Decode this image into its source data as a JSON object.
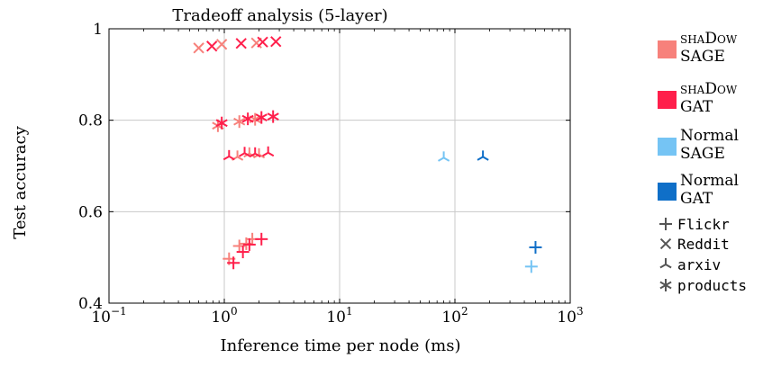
{
  "chart_data": {
    "type": "scatter",
    "title": "Tradeoff analysis (5-layer)",
    "xlabel": "Inference time per node (ms)",
    "ylabel": "Test accuracy",
    "xscale": "log",
    "xlim": [
      0.1,
      1000
    ],
    "ylim": [
      0.4,
      1.0
    ],
    "grid": true,
    "legend_position": "right",
    "x_ticks": [
      {
        "base": "10",
        "exp": "−1",
        "value": 0.1
      },
      {
        "base": "10",
        "exp": "0",
        "value": 1
      },
      {
        "base": "10",
        "exp": "1",
        "value": 10
      },
      {
        "base": "10",
        "exp": "2",
        "value": 100
      },
      {
        "base": "10",
        "exp": "3",
        "value": 1000
      }
    ],
    "y_ticks": [
      {
        "label": "0.4",
        "value": 0.4
      },
      {
        "label": "0.6",
        "value": 0.6
      },
      {
        "label": "0.8",
        "value": 0.8
      },
      {
        "label": "1",
        "value": 1.0
      }
    ],
    "model_legend": [
      {
        "line1": "shaDow",
        "line2": "SAGE",
        "color": "#f7817b",
        "smallcaps": true
      },
      {
        "line1": "shaDow",
        "line2": "GAT",
        "color": "#ff1f4b",
        "smallcaps": true
      },
      {
        "line1": "Normal",
        "line2": "SAGE",
        "color": "#75c4f4",
        "smallcaps": false
      },
      {
        "line1": "Normal",
        "line2": "GAT",
        "color": "#0f6fc8",
        "smallcaps": false
      }
    ],
    "dataset_legend": [
      {
        "label": "Flickr",
        "marker": "plus"
      },
      {
        "label": "Reddit",
        "marker": "x"
      },
      {
        "label": "arxiv",
        "marker": "tri"
      },
      {
        "label": "products",
        "marker": "star"
      }
    ],
    "colors": {
      "shadow_sage": "#f7817b",
      "shadow_gat": "#ff1f4b",
      "normal_sage": "#75c4f4",
      "normal_gat": "#0f6fc8",
      "legend_marker": "#555555",
      "grid": "#c8c8c8"
    },
    "series": [
      {
        "model": "shaDow SAGE",
        "dataset": "Flickr",
        "color": "#f7817b",
        "marker": "plus",
        "points": [
          [
            1.1,
            0.497
          ],
          [
            1.35,
            0.525
          ],
          [
            1.55,
            0.53
          ],
          [
            1.75,
            0.54
          ]
        ]
      },
      {
        "model": "shaDow GAT",
        "dataset": "Flickr",
        "color": "#ff1f4b",
        "marker": "plus",
        "points": [
          [
            1.2,
            0.488
          ],
          [
            1.45,
            0.512
          ],
          [
            1.65,
            0.528
          ],
          [
            2.1,
            0.54
          ]
        ]
      },
      {
        "model": "shaDow SAGE",
        "dataset": "Reddit",
        "color": "#f7817b",
        "marker": "x",
        "points": [
          [
            0.6,
            0.958
          ],
          [
            0.95,
            0.966
          ],
          [
            1.9,
            0.969
          ]
        ]
      },
      {
        "model": "shaDow GAT",
        "dataset": "Reddit",
        "color": "#ff1f4b",
        "marker": "x",
        "points": [
          [
            0.78,
            0.962
          ],
          [
            1.4,
            0.968
          ],
          [
            2.15,
            0.971
          ],
          [
            2.8,
            0.972
          ]
        ]
      },
      {
        "model": "shaDow SAGE",
        "dataset": "arxiv",
        "color": "#f7817b",
        "marker": "tri",
        "points": [
          [
            1.3,
            0.72
          ],
          [
            1.65,
            0.727
          ],
          [
            2.0,
            0.725
          ]
        ]
      },
      {
        "model": "shaDow GAT",
        "dataset": "arxiv",
        "color": "#ff1f4b",
        "marker": "tri",
        "points": [
          [
            1.1,
            0.721
          ],
          [
            1.5,
            0.728
          ],
          [
            1.85,
            0.727
          ],
          [
            2.4,
            0.729
          ]
        ]
      },
      {
        "model": "shaDow SAGE",
        "dataset": "products",
        "color": "#f7817b",
        "marker": "star",
        "points": [
          [
            0.88,
            0.788
          ],
          [
            1.35,
            0.797
          ],
          [
            1.85,
            0.802
          ]
        ]
      },
      {
        "model": "shaDow GAT",
        "dataset": "products",
        "color": "#ff1f4b",
        "marker": "star",
        "points": [
          [
            0.95,
            0.794
          ],
          [
            1.6,
            0.803
          ],
          [
            2.1,
            0.806
          ],
          [
            2.65,
            0.808
          ]
        ]
      },
      {
        "model": "Normal SAGE",
        "dataset": "Flickr",
        "color": "#75c4f4",
        "marker": "plus",
        "points": [
          [
            460,
            0.48
          ]
        ]
      },
      {
        "model": "Normal GAT",
        "dataset": "Flickr",
        "color": "#0f6fc8",
        "marker": "plus",
        "points": [
          [
            500,
            0.522
          ]
        ]
      },
      {
        "model": "Normal SAGE",
        "dataset": "arxiv",
        "color": "#75c4f4",
        "marker": "tri",
        "points": [
          [
            80,
            0.718
          ]
        ]
      },
      {
        "model": "Normal GAT",
        "dataset": "arxiv",
        "color": "#0f6fc8",
        "marker": "tri",
        "points": [
          [
            175,
            0.72
          ]
        ]
      }
    ]
  }
}
